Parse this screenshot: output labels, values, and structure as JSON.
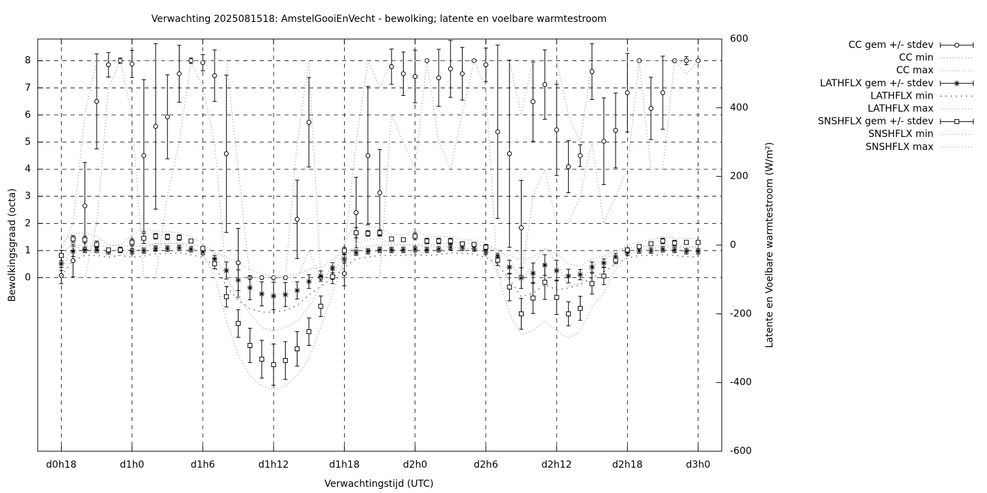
{
  "chart_data": {
    "type": "errorbar",
    "title": "Verwachting 2025081518: AmstelGooiEnVecht - bewolking; latente en voelbare warmtestroom",
    "xlabel": "Verwachtingstijd (UTC)",
    "ylabel": "Bewolkingsgraad (octa)",
    "y2label": "Latente en Voelbare warmtestroom (W/m²)",
    "grid": true,
    "x": [
      18,
      19,
      20,
      21,
      22,
      23,
      24,
      25,
      26,
      27,
      28,
      29,
      30,
      31,
      32,
      33,
      34,
      35,
      36,
      37,
      38,
      39,
      40,
      41,
      42,
      43,
      44,
      45,
      46,
      47,
      48,
      49,
      50,
      51,
      52,
      53,
      54,
      55,
      56,
      57,
      58,
      59,
      60,
      61,
      62,
      63,
      64,
      65,
      66,
      67,
      68,
      69,
      70,
      71,
      72
    ],
    "xlim": [
      16,
      74
    ],
    "xticks": [
      {
        "value": 18,
        "label": "d0h18"
      },
      {
        "value": 24,
        "label": "d1h0"
      },
      {
        "value": 30,
        "label": "d1h6"
      },
      {
        "value": 36,
        "label": "d1h12"
      },
      {
        "value": 42,
        "label": "d1h18"
      },
      {
        "value": 48,
        "label": "d2h0"
      },
      {
        "value": 54,
        "label": "d2h6"
      },
      {
        "value": 60,
        "label": "d2h12"
      },
      {
        "value": 66,
        "label": "d2h18"
      },
      {
        "value": 72,
        "label": "d3h0"
      }
    ],
    "ylim": [
      -6.4,
      8.8
    ],
    "yticks": [
      0,
      1,
      2,
      3,
      4,
      5,
      6,
      7,
      8
    ],
    "y2lim": [
      -600,
      600
    ],
    "y2ticks": [
      -600,
      -400,
      -200,
      0,
      200,
      400,
      600
    ],
    "series": [
      {
        "name": "CC gem +/- stdev",
        "style": "errorbar",
        "marker": "circle",
        "color": "#000000",
        "values": [
          0.08,
          0.63,
          2.65,
          6.5,
          7.85,
          8,
          7.88,
          4.5,
          5.58,
          5.93,
          7.52,
          8,
          7.93,
          7.45,
          4.57,
          0.55,
          0,
          0,
          0,
          0,
          2.15,
          5.73,
          0,
          0,
          0.15,
          2.4,
          4.5,
          3.13,
          7.78,
          7.52,
          7.42,
          8,
          7.37,
          7.7,
          7.52,
          8,
          7.85,
          5.38,
          4.57,
          1.84,
          6.49,
          7.12,
          5.45,
          4.09,
          4.5,
          7.6,
          5.03,
          5.43,
          6.82,
          8,
          6.24,
          6.82,
          8,
          8,
          8
        ],
        "errors": [
          0.3,
          0.6,
          1.6,
          1.75,
          0.45,
          0.1,
          0.5,
          2.8,
          3.05,
          1.55,
          1.05,
          0.1,
          0.3,
          0.95,
          2.9,
          1.27,
          0,
          0,
          0,
          0,
          1.45,
          1.65,
          0,
          0,
          0.45,
          1.3,
          2.55,
          1.6,
          0.65,
          0.8,
          0.97,
          0,
          1.05,
          1.05,
          0.97,
          0,
          0.62,
          3.2,
          3.45,
          1.75,
          1.46,
          1.28,
          1.68,
          0.96,
          0.4,
          1.03,
          1.6,
          1.38,
          1.45,
          0,
          1.15,
          1.35,
          0,
          0.15,
          0
        ]
      },
      {
        "name": "CC min",
        "style": "dotted",
        "color": "#b0b0b0",
        "values": [
          0,
          0,
          0,
          2,
          7,
          8,
          6,
          0,
          0,
          3,
          5,
          8,
          7,
          5,
          0,
          0,
          0,
          0,
          0,
          0,
          0,
          1,
          0,
          0,
          0,
          0,
          0,
          0,
          6,
          5,
          4,
          8,
          5,
          4,
          6,
          8,
          7,
          0,
          0,
          0,
          3,
          4,
          2,
          2,
          3,
          5,
          2,
          3,
          4,
          8,
          4,
          4,
          8,
          7.5,
          8
        ]
      },
      {
        "name": "CC max",
        "style": "dotted",
        "color": "#b0b0b0",
        "values": [
          1,
          2,
          6,
          8,
          8,
          8,
          8,
          8,
          8,
          8,
          8,
          8,
          8,
          8,
          8,
          4,
          0,
          0,
          0,
          0,
          5,
          8,
          0,
          0,
          1,
          5,
          8,
          7,
          8,
          8,
          8,
          8,
          8,
          8,
          8,
          8,
          8,
          8,
          8,
          6,
          8,
          8,
          8,
          6,
          5,
          8,
          8,
          8,
          8,
          8,
          8,
          8,
          8,
          8,
          8
        ]
      },
      {
        "name": "LATHFLX gem +/- stdev",
        "style": "errorbar",
        "marker": "star",
        "color": "#000000",
        "axis": "y2",
        "values": [
          -54,
          -18,
          -14,
          -14,
          -18,
          -14,
          -18,
          -16,
          -10,
          -10,
          -8,
          -12,
          -20,
          -40,
          -74,
          -102,
          -124,
          -142,
          -148,
          -144,
          -132,
          -106,
          -90,
          -66,
          -40,
          -22,
          -18,
          -14,
          -14,
          -14,
          -12,
          -14,
          -12,
          -6,
          -8,
          -10,
          -20,
          -34,
          -64,
          -96,
          -82,
          -58,
          -74,
          -90,
          -86,
          -64,
          -52,
          -34,
          -22,
          -16,
          -16,
          -12,
          -14,
          -18,
          -18
        ],
        "errors": [
          20,
          15,
          8,
          8,
          8,
          8,
          8,
          8,
          8,
          8,
          8,
          8,
          8,
          10,
          25,
          30,
          35,
          35,
          40,
          35,
          25,
          20,
          15,
          15,
          12,
          8,
          8,
          8,
          8,
          8,
          8,
          8,
          8,
          8,
          8,
          8,
          8,
          10,
          20,
          30,
          30,
          30,
          30,
          20,
          15,
          15,
          12,
          10,
          8,
          8,
          8,
          8,
          8,
          8,
          8
        ]
      },
      {
        "name": "LATHFLX min",
        "style": "sparse",
        "color": "#333333",
        "axis": "y2",
        "values": [
          -90,
          -45,
          -30,
          -30,
          -35,
          -30,
          -35,
          -32,
          -25,
          -25,
          -22,
          -28,
          -36,
          -60,
          -120,
          -160,
          -185,
          -195,
          -195,
          -190,
          -175,
          -145,
          -120,
          -95,
          -65,
          -40,
          -35,
          -30,
          -30,
          -30,
          -28,
          -30,
          -28,
          -22,
          -24,
          -26,
          -36,
          -55,
          -100,
          -150,
          -140,
          -115,
          -130,
          -125,
          -115,
          -95,
          -78,
          -55,
          -38,
          -30,
          -30,
          -28,
          -30,
          -34,
          -34
        ]
      },
      {
        "name": "LATHFLX max",
        "style": "dotted",
        "color": "#b0b0b0",
        "axis": "y2",
        "values": [
          -20,
          0,
          -2,
          -2,
          -4,
          0,
          -4,
          -2,
          4,
          4,
          6,
          2,
          -6,
          -22,
          -35,
          -55,
          -70,
          -85,
          -90,
          -88,
          -85,
          -70,
          -65,
          -42,
          -20,
          -6,
          -4,
          0,
          0,
          0,
          2,
          0,
          2,
          8,
          6,
          4,
          -6,
          -15,
          -30,
          -45,
          -35,
          -10,
          -25,
          -55,
          -62,
          -40,
          -32,
          -16,
          -8,
          -4,
          -4,
          0,
          -2,
          -6,
          -6
        ]
      },
      {
        "name": "SNSHFLX gem +/- stdev",
        "style": "errorbar",
        "marker": "square",
        "color": "#000000",
        "axis": "y2",
        "values": [
          -30,
          18,
          16,
          2,
          -14,
          -14,
          8,
          20,
          26,
          24,
          22,
          12,
          -10,
          -54,
          -150,
          -228,
          -292,
          -332,
          -348,
          -336,
          -302,
          -252,
          -178,
          -92,
          -16,
          36,
          34,
          36,
          18,
          16,
          26,
          12,
          12,
          12,
          4,
          2,
          -6,
          -44,
          -122,
          -200,
          -154,
          -108,
          -152,
          -200,
          -184,
          -112,
          -90,
          -44,
          -14,
          -4,
          4,
          12,
          6,
          8,
          8
        ],
        "errors": [
          15,
          10,
          10,
          10,
          6,
          6,
          10,
          15,
          8,
          8,
          8,
          6,
          6,
          15,
          30,
          40,
          50,
          55,
          60,
          55,
          50,
          40,
          30,
          20,
          10,
          15,
          8,
          8,
          6,
          6,
          10,
          8,
          8,
          8,
          6,
          6,
          8,
          15,
          40,
          45,
          45,
          50,
          50,
          35,
          35,
          30,
          25,
          10,
          6,
          6,
          6,
          8,
          8,
          6,
          6
        ]
      },
      {
        "name": "SNSHFLX min",
        "style": "dotted",
        "color": "#b0b0b0",
        "axis": "y2",
        "values": [
          -70,
          -5,
          -10,
          -20,
          -30,
          -30,
          -15,
          -10,
          5,
          5,
          5,
          -5,
          -25,
          -90,
          -220,
          -320,
          -380,
          -410,
          -420,
          -410,
          -380,
          -330,
          -240,
          -140,
          -40,
          5,
          15,
          20,
          5,
          0,
          0,
          -5,
          -5,
          -5,
          -10,
          -10,
          -20,
          -80,
          -200,
          -260,
          -250,
          -220,
          -250,
          -270,
          -250,
          -180,
          -140,
          -70,
          -30,
          -15,
          -10,
          -5,
          -10,
          -5,
          -5
        ]
      },
      {
        "name": "SNSHFLX max",
        "style": "dotted",
        "color": "#b0b0b0",
        "axis": "y2",
        "values": [
          5,
          35,
          35,
          25,
          0,
          0,
          30,
          50,
          40,
          40,
          35,
          25,
          5,
          -25,
          -95,
          -150,
          -200,
          -240,
          -250,
          -240,
          -220,
          -180,
          -120,
          -55,
          5,
          70,
          55,
          50,
          30,
          30,
          45,
          25,
          25,
          25,
          15,
          15,
          5,
          -15,
          -40,
          -100,
          -60,
          -10,
          -50,
          -120,
          -110,
          -60,
          -45,
          -20,
          0,
          10,
          15,
          25,
          20,
          20,
          20
        ]
      }
    ]
  }
}
